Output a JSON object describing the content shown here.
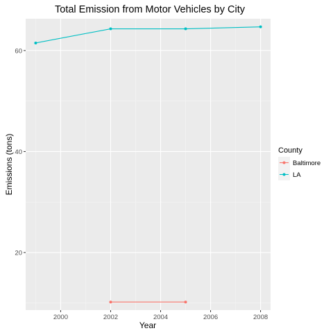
{
  "chart_data": {
    "type": "line",
    "title": "Total Emission from Motor Vehicles by City",
    "xlabel": "Year",
    "ylabel": "Emissions (tons)",
    "xlim": [
      1998.6,
      2008.4
    ],
    "ylim": [
      8.6,
      66.3
    ],
    "x_ticks": [
      2000,
      2002,
      2004,
      2006,
      2008
    ],
    "y_ticks": [
      20,
      40,
      60
    ],
    "grid": true,
    "legend": {
      "title": "County",
      "position": "right"
    },
    "series": [
      {
        "name": "Baltimore",
        "color": "#F8766D",
        "x": [
          2002,
          2005
        ],
        "y": [
          10.2,
          10.2
        ]
      },
      {
        "name": "LA",
        "color": "#00BFC4",
        "x": [
          1999,
          2002,
          2005,
          2008
        ],
        "y": [
          61.5,
          64.3,
          64.3,
          64.7
        ]
      }
    ]
  }
}
